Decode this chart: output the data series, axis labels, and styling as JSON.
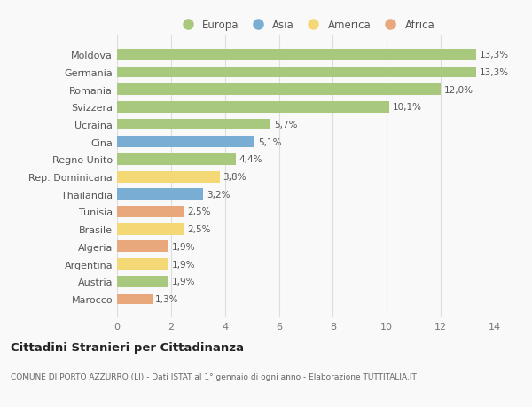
{
  "countries": [
    "Moldova",
    "Germania",
    "Romania",
    "Svizzera",
    "Ucraina",
    "Cina",
    "Regno Unito",
    "Rep. Dominicana",
    "Thailandia",
    "Tunisia",
    "Brasile",
    "Algeria",
    "Argentina",
    "Austria",
    "Marocco"
  ],
  "values": [
    13.3,
    13.3,
    12.0,
    10.1,
    5.7,
    5.1,
    4.4,
    3.8,
    3.2,
    2.5,
    2.5,
    1.9,
    1.9,
    1.9,
    1.3
  ],
  "labels": [
    "13,3%",
    "13,3%",
    "12,0%",
    "10,1%",
    "5,7%",
    "5,1%",
    "4,4%",
    "3,8%",
    "3,2%",
    "2,5%",
    "2,5%",
    "1,9%",
    "1,9%",
    "1,9%",
    "1,3%"
  ],
  "continents": [
    "Europa",
    "Europa",
    "Europa",
    "Europa",
    "Europa",
    "Asia",
    "Europa",
    "America",
    "Asia",
    "Africa",
    "America",
    "Africa",
    "America",
    "Europa",
    "Africa"
  ],
  "continent_colors": {
    "Europa": "#a8c87e",
    "Asia": "#7aadd4",
    "America": "#f5d876",
    "Africa": "#e8a87c"
  },
  "legend_order": [
    "Europa",
    "Asia",
    "America",
    "Africa"
  ],
  "title": "Cittadini Stranieri per Cittadinanza",
  "subtitle": "COMUNE DI PORTO AZZURRO (LI) - Dati ISTAT al 1° gennaio di ogni anno - Elaborazione TUTTITALIA.IT",
  "xlim": [
    0,
    14
  ],
  "xticks": [
    0,
    2,
    4,
    6,
    8,
    10,
    12,
    14
  ],
  "background_color": "#f9f9f9",
  "grid_color": "#dddddd"
}
